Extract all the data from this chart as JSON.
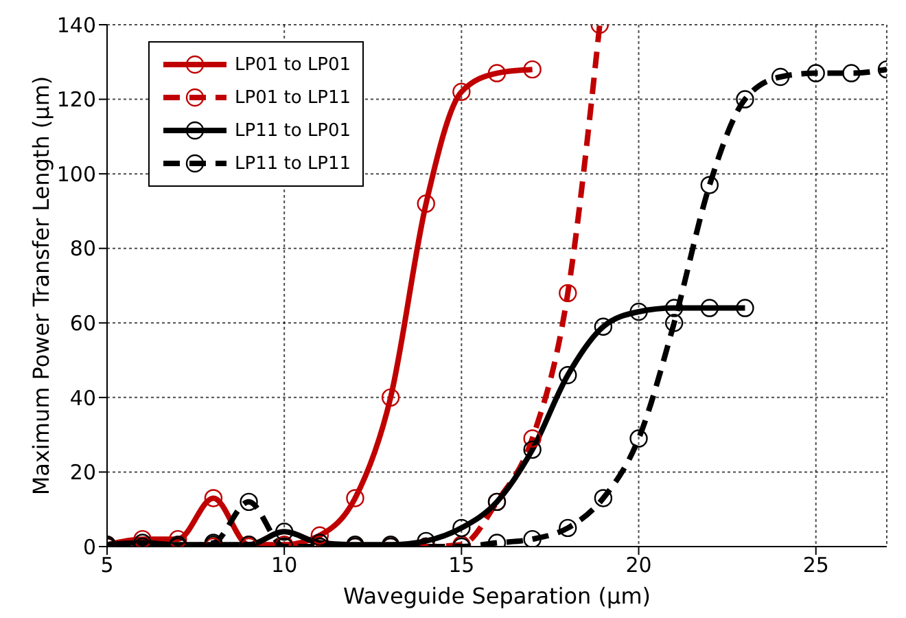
{
  "chart_data": {
    "type": "line",
    "xlabel": "Waveguide Separation (µm)",
    "ylabel": "Maximum Power Transfer Length (µm)",
    "xlim": [
      5,
      27
    ],
    "xticks": [
      5,
      10,
      15,
      20,
      25
    ],
    "ylim": [
      0,
      140
    ],
    "yticks": [
      0,
      20,
      40,
      60,
      80,
      100,
      120,
      140
    ],
    "grid": true,
    "legend": "top left",
    "marker": "circle",
    "series": [
      {
        "name": "LP01 to LP01",
        "color": "#c00000",
        "line_style": "solid",
        "x": [
          5,
          6,
          7,
          8,
          9,
          10,
          11,
          12,
          13,
          14,
          15,
          16,
          17
        ],
        "values": [
          0.5,
          2,
          2,
          13,
          0.5,
          0.5,
          3,
          13,
          40,
          92,
          122,
          127,
          128
        ]
      },
      {
        "name": "LP01 to LP11",
        "color": "#c00000",
        "line_style": "dashed",
        "x": [
          5,
          6,
          7,
          8,
          9,
          10,
          11,
          12,
          13,
          14,
          15,
          16,
          17,
          18,
          18.9
        ],
        "values": [
          0,
          0,
          0,
          0,
          0,
          0,
          0,
          0,
          0,
          0,
          0.5,
          12,
          29,
          68,
          140
        ]
      },
      {
        "name": "LP11 to LP01",
        "color": "#000000",
        "line_style": "solid",
        "x": [
          5,
          6,
          7,
          8,
          9,
          10,
          11,
          12,
          13,
          14,
          15,
          16,
          17,
          18,
          19,
          20,
          21,
          22,
          23
        ],
        "values": [
          0.5,
          1,
          0.5,
          0.5,
          0.5,
          4,
          1,
          0.5,
          0.5,
          1.5,
          5,
          12,
          26,
          46,
          59,
          63,
          64,
          64,
          64
        ]
      },
      {
        "name": "LP11 to LP11",
        "color": "#000000",
        "line_style": "dashed",
        "x": [
          5,
          6,
          7,
          8,
          9,
          10,
          11,
          12,
          13,
          14,
          15,
          16,
          17,
          18,
          19,
          20,
          21,
          22,
          23,
          24,
          25,
          26,
          27
        ],
        "values": [
          0,
          0,
          0,
          1,
          12,
          0,
          0,
          0,
          0,
          0,
          0,
          1,
          2,
          5,
          13,
          29,
          60,
          97,
          120,
          126,
          127,
          127,
          128
        ]
      }
    ]
  }
}
